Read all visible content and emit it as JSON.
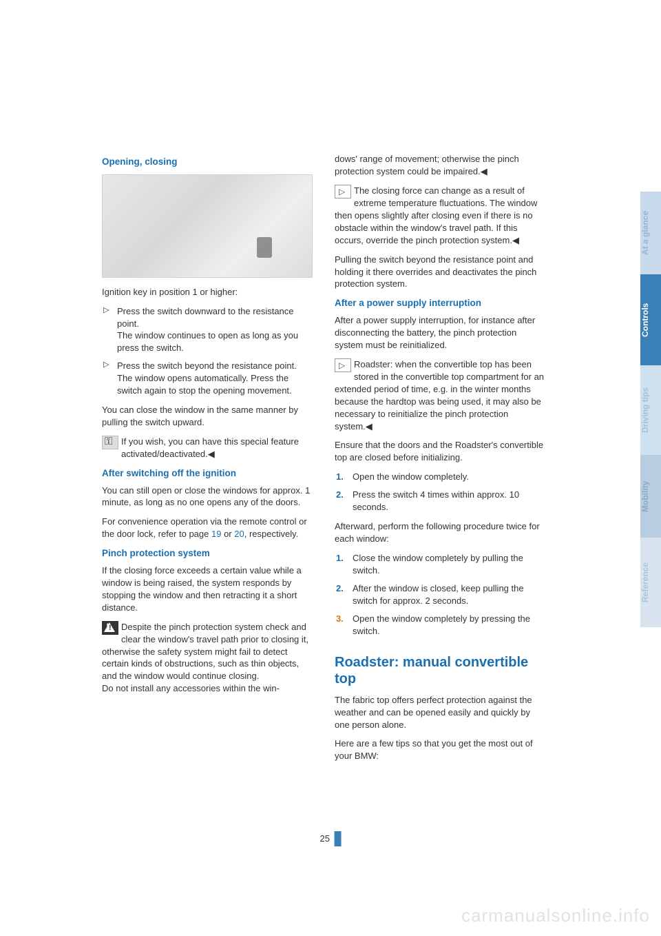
{
  "left": {
    "h_opening": "Opening, closing",
    "ignition_intro": "Ignition key in position 1 or higher:",
    "bullets": [
      {
        "a": "Press the switch downward to the resistance point.",
        "b": "The window continues to open as long as you press the switch."
      },
      {
        "a": "Press the switch beyond the resistance point.",
        "b": "The window opens automatically. Press the switch again to stop the opening movement."
      }
    ],
    "close_same": "You can close the window in the same manner by pulling the switch upward.",
    "special_feature": "If you wish, you can have this special feature activated/deactivated.◀",
    "h_after_off": "After switching off the ignition",
    "after_off_p": "You can still open or close the windows for approx. 1 minute, as long as no one opens any of the doors.",
    "conv_op_a": "For convenience operation via the remote control or the door lock, refer to page ",
    "conv_link1": "19",
    "conv_mid": " or ",
    "conv_link2": "20",
    "conv_op_b": ", respectively.",
    "h_pinch": "Pinch protection system",
    "pinch_p": "If the closing force exceeds a certain value while a window is being raised, the system responds by stopping the window and then retracting it a short distance.",
    "warn_p": "Despite the pinch protection system check and clear the window's travel path prior to closing it, otherwise the safety system might fail to detect certain kinds of obstructions, such as thin objects, and the window would continue closing.",
    "warn_p2": "Do not install any accessories within the win-"
  },
  "right": {
    "cont_p": "dows' range of movement; otherwise the pinch protection system could be impaired.◀",
    "note1": "The closing force can change as a result of extreme temperature fluctuations. The window then opens slightly after closing even if there is no obstacle within the window's travel path. If this occurs, override the pinch protection system.◀",
    "pull_p": "Pulling the switch beyond the resistance point and holding it there overrides and deactivates the pinch protection system.",
    "h_after_power": "After a power supply interruption",
    "after_power_p": "After a power supply interruption, for instance after disconnecting the battery, the pinch protection system must be reinitialized.",
    "note2": "Roadster: when the convertible top has been stored in the convertible top compartment for an extended period of time, e.g. in the winter months because the hardtop was being used, it may also be necessary to reinitialize the pinch protection system.◀",
    "ensure_p": "Ensure that the doors and the Roadster's convertible top are closed before initializing.",
    "steps1": [
      "Open the window completely.",
      "Press the switch 4 times within approx. 10 seconds."
    ],
    "afterward_p": "Afterward, perform the following procedure twice for each window:",
    "steps2": [
      "Close the window completely by pulling the switch.",
      "After the window is closed, keep pulling the switch for approx. 2 seconds.",
      "Open the window completely by pressing the switch."
    ],
    "h_roadster": "Roadster: manual convertible top",
    "roadster_p1": "The fabric top offers perfect protection against the weather and can be opened easily and quickly by one person alone.",
    "roadster_p2": "Here are a few tips so that you get the most out of your BMW:"
  },
  "tabs": {
    "glance": "At a glance",
    "controls": "Controls",
    "driving": "Driving tips",
    "mobility": "Mobility",
    "reference": "Reference"
  },
  "page_number": "25",
  "watermark": "carmanualsonline.info",
  "colors": {
    "blue": "#1a6fb0",
    "tab_active": "#3a7fb5"
  }
}
